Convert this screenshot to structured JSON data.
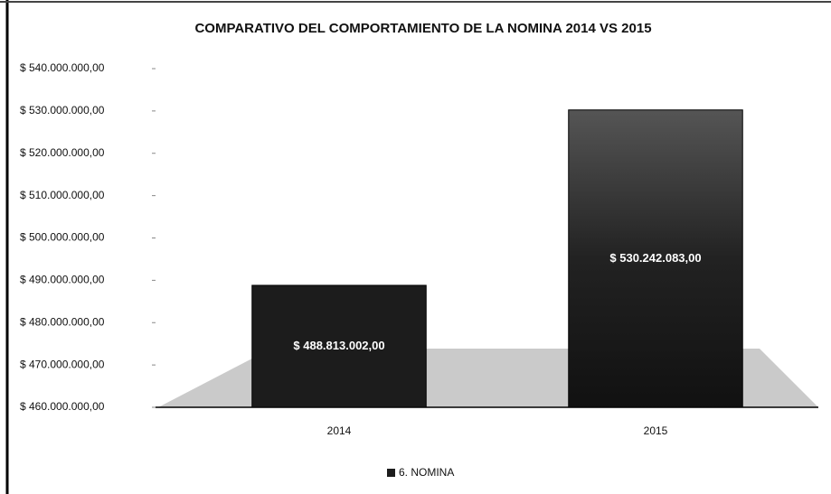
{
  "chart_data": {
    "type": "bar",
    "title": "COMPARATIVO DEL COMPORTAMIENTO DE LA NOMINA 2014 VS 2015",
    "categories": [
      "2014",
      "2015"
    ],
    "series": [
      {
        "name": "6. NOMINA",
        "color": "#1c1c1c",
        "values": [
          488813002,
          530242083
        ],
        "value_labels": [
          "$ 488.813.002,00",
          "$ 530.242.083,00"
        ]
      }
    ],
    "ylim": [
      460000000,
      540000000
    ],
    "yticks": [
      {
        "value": 460000000,
        "label": "$ 460.000.000,00"
      },
      {
        "value": 470000000,
        "label": "$ 470.000.000,00"
      },
      {
        "value": 480000000,
        "label": "$ 480.000.000,00"
      },
      {
        "value": 490000000,
        "label": "$ 490.000.000,00"
      },
      {
        "value": 500000000,
        "label": "$ 500.000.000,00"
      },
      {
        "value": 510000000,
        "label": "$ 510.000.000,00"
      },
      {
        "value": 520000000,
        "label": "$ 520.000.000,00"
      },
      {
        "value": 530000000,
        "label": "$ 530.000.000,00"
      },
      {
        "value": 540000000,
        "label": "$ 540.000.000,00"
      }
    ],
    "legend": "bottom"
  }
}
